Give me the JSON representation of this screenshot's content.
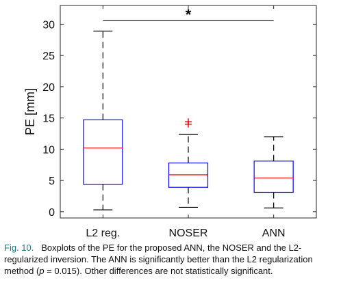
{
  "chart_data": {
    "type": "boxplot",
    "ylabel": "PE [mm]",
    "ylim": [
      -1,
      33
    ],
    "yticks": [
      0,
      5,
      10,
      15,
      20,
      25,
      30
    ],
    "categories": [
      "L2 reg.",
      "NOSER",
      "ANN"
    ],
    "boxes": [
      {
        "name": "L2 reg.",
        "whisker_low": 0.3,
        "q1": 4.4,
        "median": 10.2,
        "q3": 14.7,
        "whisker_high": 28.9,
        "outliers": []
      },
      {
        "name": "NOSER",
        "whisker_low": 0.7,
        "q1": 3.9,
        "median": 5.9,
        "q3": 7.8,
        "whisker_high": 12.4,
        "outliers": [
          14.0,
          14.4
        ]
      },
      {
        "name": "ANN",
        "whisker_low": 0.6,
        "q1": 3.1,
        "median": 5.4,
        "q3": 8.1,
        "whisker_high": 12.0,
        "outliers": []
      }
    ],
    "significance": {
      "from": "L2 reg.",
      "to": "ANN",
      "y": 30.6,
      "marker": "*"
    },
    "colors": {
      "box": "#0000ff",
      "median": "#ff0000",
      "whisker": "#000000",
      "outlier": "#ff0000",
      "axis": "#262626"
    }
  },
  "caption": {
    "label": "Fig. 10.",
    "text": "Boxplots of the PE for the proposed ANN, the NOSER and the L2-regularized inversion. The ANN is significantly better than the L2 regularization method (",
    "p_symbol": "p",
    "p_value_text": " = 0.015). Other differences are not statistically significant."
  }
}
